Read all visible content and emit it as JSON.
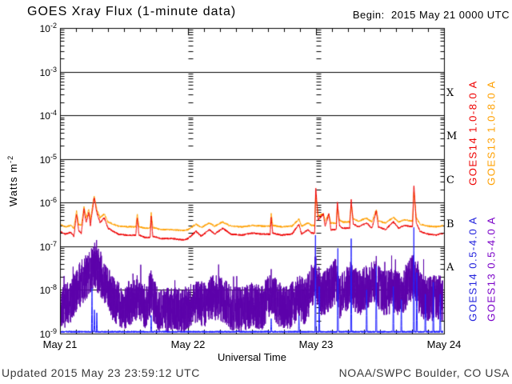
{
  "header": {
    "title": "GOES Xray Flux (1-minute data)",
    "begin": "Begin:  2015 May 21 0000 UTC"
  },
  "footer": {
    "updated": "Updated 2015 May 23 23:59:12 UTC",
    "source": "NOAA/SWPC Boulder, CO USA"
  },
  "chart_data": {
    "type": "line",
    "title": "GOES Xray Flux (1-minute data)",
    "xlabel": "Universal Time",
    "ylabel_base": "Watts m",
    "ylabel_exp": "-2",
    "x_ticks": [
      "May 21",
      "May 22",
      "May 23",
      "May 24"
    ],
    "x_range_hours": 72,
    "y_tick_base": "10",
    "y_tick_exponents": [
      -2,
      -3,
      -4,
      -5,
      -6,
      -7,
      -8,
      -9
    ],
    "ylim_log": [
      -9,
      -2
    ],
    "grid": "solid horizontal lines at each decade, log-minor tick columns at day boundaries",
    "flare_classes": [
      {
        "label": "X",
        "log_center": -3.5
      },
      {
        "label": "M",
        "log_center": -4.5
      },
      {
        "label": "C",
        "log_center": -5.5
      },
      {
        "label": "B",
        "log_center": -6.5
      },
      {
        "label": "A",
        "log_center": -7.5
      }
    ],
    "legend_right": [
      {
        "key": "goes14-long",
        "text": "GOES14 1.0-8.0 A",
        "color": "#ee0000",
        "col": 0,
        "row": 0
      },
      {
        "key": "goes13-long",
        "text": "GOES13 1.0-8.0 A",
        "color": "#ffa000",
        "col": 1,
        "row": 0
      },
      {
        "key": "goes14-short",
        "text": "GOES14 0.5-4.0 A",
        "color": "#2222dd",
        "col": 0,
        "row": 1
      },
      {
        "key": "goes13-short",
        "text": "GOES13 0.5-4.0 A",
        "color": "#7a00c8",
        "col": 1,
        "row": 1
      }
    ],
    "series": [
      {
        "key": "goes13-short",
        "name": "GOES13 0.5-4.0 A",
        "color": "#5c00aa",
        "type": "noisy",
        "noise_decades": 0.52,
        "seed": 7,
        "envelope": [
          [
            0,
            4e-09
          ],
          [
            2,
            5e-09
          ],
          [
            3.1,
            1e-08
          ],
          [
            4.5,
            1.8e-08
          ],
          [
            5.4,
            2.2e-08
          ],
          [
            6.4,
            3.5e-08
          ],
          [
            7.5,
            2.5e-08
          ],
          [
            9,
            1e-08
          ],
          [
            10,
            6e-09
          ],
          [
            12,
            4e-09
          ],
          [
            14.5,
            7e-09
          ],
          [
            16,
            4e-09
          ],
          [
            17.1,
            9e-09
          ],
          [
            18,
            4e-09
          ],
          [
            20,
            3.5e-09
          ],
          [
            23,
            3.5e-09
          ],
          [
            24,
            4e-09
          ],
          [
            25.5,
            6e-09
          ],
          [
            27,
            4.5e-09
          ],
          [
            28.5,
            7e-09
          ],
          [
            30.5,
            6e-09
          ],
          [
            32,
            4e-09
          ],
          [
            34,
            3.5e-09
          ],
          [
            36,
            4.5e-09
          ],
          [
            38,
            4e-09
          ],
          [
            39.6,
            9e-09
          ],
          [
            41,
            4.5e-09
          ],
          [
            43,
            4e-09
          ],
          [
            44.8,
            7e-09
          ],
          [
            46,
            5e-09
          ],
          [
            47.9,
            2e-08
          ],
          [
            49,
            7e-09
          ],
          [
            51.7,
            1.6e-08
          ],
          [
            52.5,
            7e-09
          ],
          [
            54.6,
            1.4e-08
          ],
          [
            56,
            8e-09
          ],
          [
            57.5,
            1.2e-08
          ],
          [
            59.3,
            1.6e-08
          ],
          [
            60.5,
            8e-09
          ],
          [
            62.5,
            1e-08
          ],
          [
            64,
            8e-09
          ],
          [
            66.35,
            2.2e-08
          ],
          [
            67.5,
            8e-09
          ],
          [
            69,
            6e-09
          ],
          [
            71,
            7e-09
          ],
          [
            72,
            6e-09
          ]
        ],
        "spikes": [
          [
            5.9,
            9e-08
          ],
          [
            6.5,
            1.2e-07
          ],
          [
            6.9,
            8e-08
          ],
          [
            17.1,
            1.4e-08
          ],
          [
            39.6,
            3e-08
          ],
          [
            47.9,
            1e-07
          ],
          [
            51.7,
            5e-08
          ],
          [
            54.6,
            4e-08
          ],
          [
            59.3,
            6e-08
          ],
          [
            62.9,
            5e-08
          ],
          [
            66.35,
            9e-08
          ]
        ]
      },
      {
        "key": "goes14-short",
        "name": "GOES14 0.5-4.0 A",
        "color": "#2020ff",
        "type": "floor",
        "baseline": 1.05e-09,
        "seed": 3,
        "spikes": [
          [
            6.0,
            1.1e-08
          ],
          [
            6.45,
            4e-09
          ],
          [
            6.9,
            3e-09
          ],
          [
            17.1,
            2.6e-09
          ],
          [
            39.6,
            2.2e-09
          ],
          [
            44.8,
            2.6e-09
          ],
          [
            47.9,
            1.8e-07
          ],
          [
            48.6,
            1.2e-08
          ],
          [
            52.1,
            9e-08
          ],
          [
            54.6,
            1.5e-07
          ],
          [
            57.5,
            1e-08
          ],
          [
            59.3,
            3.5e-08
          ],
          [
            62.5,
            1.2e-08
          ],
          [
            64.0,
            6e-09
          ],
          [
            66.35,
            5e-07
          ],
          [
            66.9,
            2.5e-08
          ],
          [
            68.5,
            8e-09
          ],
          [
            70.0,
            1.5e-08
          ],
          [
            71.3,
            8e-09
          ]
        ]
      },
      {
        "key": "goes13-long",
        "name": "GOES13 1.0-8.0 A",
        "color": "#ffa000",
        "type": "keypoints",
        "jitter_decades": 0.02,
        "seed": 13,
        "keypoints": [
          [
            0,
            3.2e-07
          ],
          [
            1,
            2.8e-07
          ],
          [
            2,
            3e-07
          ],
          [
            2.6,
            2.6e-07
          ],
          [
            3.1,
            6.5e-07
          ],
          [
            3.5,
            3.2e-07
          ],
          [
            4.0,
            3e-07
          ],
          [
            4.5,
            8e-07
          ],
          [
            4.9,
            4.5e-07
          ],
          [
            5.4,
            7e-07
          ],
          [
            5.7,
            4e-07
          ],
          [
            6.4,
            1.45e-06
          ],
          [
            6.9,
            7e-07
          ],
          [
            7.5,
            4.5e-07
          ],
          [
            8.3,
            5.5e-07
          ],
          [
            9,
            3.6e-07
          ],
          [
            10,
            3.2e-07
          ],
          [
            11,
            2.9e-07
          ],
          [
            12.5,
            2.8e-07
          ],
          [
            14.2,
            2.8e-07
          ],
          [
            14.5,
            5.5e-07
          ],
          [
            14.8,
            2.8e-07
          ],
          [
            16,
            2.6e-07
          ],
          [
            16.9,
            2.6e-07
          ],
          [
            17.1,
            6e-07
          ],
          [
            17.4,
            2.7e-07
          ],
          [
            19,
            2.4e-07
          ],
          [
            21,
            2.4e-07
          ],
          [
            23,
            2.3e-07
          ],
          [
            24,
            2.4e-07
          ],
          [
            25.5,
            3.2e-07
          ],
          [
            26.5,
            2.7e-07
          ],
          [
            28,
            3.4e-07
          ],
          [
            29,
            2.9e-07
          ],
          [
            30.5,
            3.6e-07
          ],
          [
            32,
            2.9e-07
          ],
          [
            34,
            2.8e-07
          ],
          [
            36,
            3e-07
          ],
          [
            38,
            2.9e-07
          ],
          [
            39.4,
            2.9e-07
          ],
          [
            39.6,
            5.5e-07
          ],
          [
            39.9,
            3e-07
          ],
          [
            41.5,
            2.8e-07
          ],
          [
            43.5,
            2.9e-07
          ],
          [
            44.8,
            4.2e-07
          ],
          [
            45.3,
            2.9e-07
          ],
          [
            46.5,
            3.4e-07
          ],
          [
            47.2,
            3e-07
          ],
          [
            47.75,
            3e-07
          ],
          [
            47.95,
            1.6e-06
          ],
          [
            48.4,
            5e-07
          ],
          [
            49.4,
            5.5e-07
          ],
          [
            49.7,
            3.8e-07
          ],
          [
            50.4,
            5.5e-07
          ],
          [
            50.8,
            3.4e-07
          ],
          [
            51.8,
            3.4e-07
          ],
          [
            52.0,
            8e-07
          ],
          [
            52.4,
            4e-07
          ],
          [
            53,
            3.6e-07
          ],
          [
            54.3,
            3.6e-07
          ],
          [
            54.6,
            8.5e-07
          ],
          [
            55.0,
            4.2e-07
          ],
          [
            56,
            3.8e-07
          ],
          [
            57.5,
            4.4e-07
          ],
          [
            58.5,
            3.6e-07
          ],
          [
            59.3,
            7e-07
          ],
          [
            59.7,
            3.8e-07
          ],
          [
            61,
            3.4e-07
          ],
          [
            62.5,
            4.6e-07
          ],
          [
            63.5,
            3.6e-07
          ],
          [
            64.5,
            4e-07
          ],
          [
            66.1,
            3.8e-07
          ],
          [
            66.35,
            1.8e-06
          ],
          [
            66.8,
            4.5e-07
          ],
          [
            67.5,
            3.2e-07
          ],
          [
            69,
            2.9e-07
          ],
          [
            70.5,
            2.8e-07
          ],
          [
            72,
            3e-07
          ]
        ]
      },
      {
        "key": "goes14-long",
        "name": "GOES14 1.0-8.0 A",
        "color": "#ee0000",
        "type": "keypoints",
        "jitter_decades": 0.02,
        "seed": 11,
        "keypoints": [
          [
            0,
            2.2e-07
          ],
          [
            1,
            1.9e-07
          ],
          [
            2,
            2.1e-07
          ],
          [
            2.6,
            1.7e-07
          ],
          [
            3.1,
            5.5e-07
          ],
          [
            3.5,
            2.3e-07
          ],
          [
            4.0,
            2e-07
          ],
          [
            4.5,
            7e-07
          ],
          [
            4.9,
            3.5e-07
          ],
          [
            5.4,
            6e-07
          ],
          [
            5.7,
            3e-07
          ],
          [
            6.4,
            1.3e-06
          ],
          [
            6.9,
            6e-07
          ],
          [
            7.5,
            3.5e-07
          ],
          [
            8.3,
            4.5e-07
          ],
          [
            9,
            2.6e-07
          ],
          [
            10,
            2.2e-07
          ],
          [
            11,
            1.9e-07
          ],
          [
            12.5,
            1.8e-07
          ],
          [
            14.2,
            1.8e-07
          ],
          [
            14.5,
            4.5e-07
          ],
          [
            14.8,
            1.8e-07
          ],
          [
            16,
            1.6e-07
          ],
          [
            16.9,
            1.6e-07
          ],
          [
            17.1,
            5e-07
          ],
          [
            17.4,
            1.7e-07
          ],
          [
            19,
            1.5e-07
          ],
          [
            21,
            1.5e-07
          ],
          [
            23,
            1.4e-07
          ],
          [
            24,
            1.5e-07
          ],
          [
            25.5,
            2.2e-07
          ],
          [
            26.5,
            1.7e-07
          ],
          [
            28,
            2.4e-07
          ],
          [
            29,
            1.9e-07
          ],
          [
            30.5,
            2.6e-07
          ],
          [
            32,
            1.9e-07
          ],
          [
            34,
            1.8e-07
          ],
          [
            36,
            2e-07
          ],
          [
            38,
            1.9e-07
          ],
          [
            39.4,
            1.9e-07
          ],
          [
            39.6,
            4.5e-07
          ],
          [
            39.9,
            2e-07
          ],
          [
            41.5,
            1.8e-07
          ],
          [
            43.5,
            1.9e-07
          ],
          [
            44.8,
            3.2e-07
          ],
          [
            45.3,
            1.9e-07
          ],
          [
            46.5,
            2.4e-07
          ],
          [
            47.2,
            2e-07
          ],
          [
            47.75,
            2e-07
          ],
          [
            47.95,
            2.3e-06
          ],
          [
            48.4,
            4e-07
          ],
          [
            49.4,
            5.5e-07
          ],
          [
            49.7,
            2.8e-07
          ],
          [
            50.4,
            5.5e-07
          ],
          [
            50.8,
            2.4e-07
          ],
          [
            51.8,
            2.4e-07
          ],
          [
            52.0,
            1.05e-06
          ],
          [
            52.4,
            3e-07
          ],
          [
            53,
            2.6e-07
          ],
          [
            54.3,
            2.6e-07
          ],
          [
            54.6,
            1.15e-06
          ],
          [
            55.0,
            3.2e-07
          ],
          [
            56,
            2.8e-07
          ],
          [
            57.5,
            3.4e-07
          ],
          [
            58.5,
            2.6e-07
          ],
          [
            59.3,
            6.5e-07
          ],
          [
            59.7,
            2.8e-07
          ],
          [
            61,
            2.4e-07
          ],
          [
            62.5,
            3.6e-07
          ],
          [
            63.5,
            2.6e-07
          ],
          [
            64.5,
            3e-07
          ],
          [
            66.1,
            2.8e-07
          ],
          [
            66.35,
            2.6e-06
          ],
          [
            66.8,
            3.5e-07
          ],
          [
            67.5,
            2.2e-07
          ],
          [
            69,
            1.9e-07
          ],
          [
            70.5,
            1.8e-07
          ],
          [
            72,
            2e-07
          ]
        ]
      }
    ]
  }
}
